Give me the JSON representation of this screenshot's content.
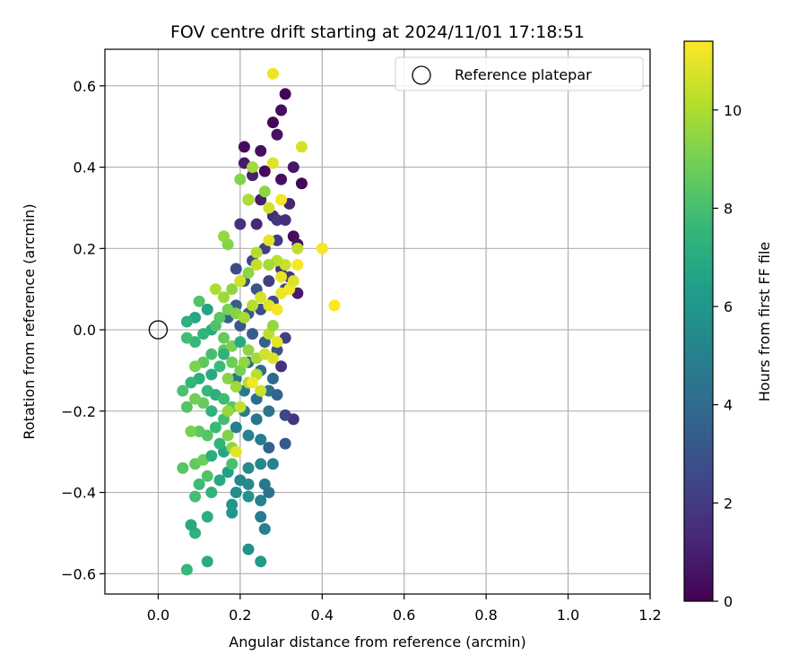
{
  "chart_data": {
    "type": "scatter",
    "title": "FOV centre drift starting at 2024/11/01 17:18:51",
    "xlabel": "Angular distance from reference (arcmin)",
    "ylabel": "Rotation from reference (arcmin)",
    "xlim": [
      -0.13,
      1.2
    ],
    "ylim": [
      -0.65,
      0.69
    ],
    "xticks": [
      0.0,
      0.2,
      0.4,
      0.6,
      0.8,
      1.0,
      1.2
    ],
    "xtick_labels": [
      "0.0",
      "0.2",
      "0.4",
      "0.6",
      "0.8",
      "1.0",
      "1.2"
    ],
    "yticks": [
      -0.6,
      -0.4,
      -0.2,
      0.0,
      0.2,
      0.4,
      0.6
    ],
    "ytick_labels": [
      "−0.6",
      "−0.4",
      "−0.2",
      "0.0",
      "0.2",
      "0.4",
      "0.6"
    ],
    "grid": true,
    "legend": {
      "placement": "top-right",
      "entries": [
        "Reference platepar"
      ]
    },
    "reference_point": {
      "x": 0.0,
      "y": 0.0,
      "marker": "hollow-circle"
    },
    "colorbar": {
      "label": "Hours from first FF file",
      "min": 0,
      "max": 11.4,
      "ticks": [
        0,
        2,
        4,
        6,
        8,
        10
      ],
      "tick_labels": [
        "0",
        "2",
        "4",
        "6",
        "8",
        "10"
      ],
      "colormap": "viridis"
    },
    "colormap_stops": [
      "#440154",
      "#482878",
      "#3e4989",
      "#31688e",
      "#26828e",
      "#1f9e89",
      "#35b779",
      "#6ece58",
      "#b5de2b",
      "#fde725"
    ],
    "points": [
      [
        0.21,
        0.45,
        0.3
      ],
      [
        0.25,
        0.44,
        0.5
      ],
      [
        0.28,
        0.51,
        0.2
      ],
      [
        0.31,
        0.58,
        0.1
      ],
      [
        0.3,
        0.54,
        0.4
      ],
      [
        0.29,
        0.48,
        0.6
      ],
      [
        0.21,
        0.41,
        0.8
      ],
      [
        0.23,
        0.38,
        1.0
      ],
      [
        0.26,
        0.39,
        0.3
      ],
      [
        0.3,
        0.37,
        0.5
      ],
      [
        0.33,
        0.4,
        0.7
      ],
      [
        0.35,
        0.36,
        0.2
      ],
      [
        0.32,
        0.31,
        1.2
      ],
      [
        0.28,
        0.28,
        1.4
      ],
      [
        0.25,
        0.32,
        0.9
      ],
      [
        0.22,
        0.32,
        1.1
      ],
      [
        0.2,
        0.26,
        1.6
      ],
      [
        0.24,
        0.26,
        1.3
      ],
      [
        0.29,
        0.27,
        1.8
      ],
      [
        0.31,
        0.27,
        1.5
      ],
      [
        0.33,
        0.23,
        0.4
      ],
      [
        0.34,
        0.21,
        0.6
      ],
      [
        0.29,
        0.22,
        2.0
      ],
      [
        0.26,
        0.2,
        2.2
      ],
      [
        0.23,
        0.17,
        2.4
      ],
      [
        0.19,
        0.15,
        2.6
      ],
      [
        0.21,
        0.12,
        2.8
      ],
      [
        0.24,
        0.1,
        3.0
      ],
      [
        0.27,
        0.12,
        2.1
      ],
      [
        0.3,
        0.15,
        1.7
      ],
      [
        0.32,
        0.13,
        1.9
      ],
      [
        0.34,
        0.09,
        0.8
      ],
      [
        0.31,
        0.1,
        2.3
      ],
      [
        0.28,
        0.07,
        2.5
      ],
      [
        0.25,
        0.05,
        2.7
      ],
      [
        0.22,
        0.04,
        3.2
      ],
      [
        0.19,
        0.06,
        3.4
      ],
      [
        0.17,
        0.03,
        3.6
      ],
      [
        0.2,
        0.01,
        3.1
      ],
      [
        0.23,
        -0.01,
        3.3
      ],
      [
        0.26,
        -0.03,
        3.5
      ],
      [
        0.29,
        -0.05,
        2.9
      ],
      [
        0.31,
        -0.02,
        2.2
      ],
      [
        0.3,
        -0.09,
        1.6
      ],
      [
        0.28,
        -0.12,
        3.8
      ],
      [
        0.25,
        -0.1,
        4.0
      ],
      [
        0.22,
        -0.08,
        4.2
      ],
      [
        0.19,
        -0.12,
        4.4
      ],
      [
        0.21,
        -0.15,
        4.6
      ],
      [
        0.24,
        -0.17,
        3.9
      ],
      [
        0.27,
        -0.15,
        4.1
      ],
      [
        0.29,
        -0.16,
        3.7
      ],
      [
        0.33,
        -0.22,
        1.8
      ],
      [
        0.31,
        -0.21,
        2.4
      ],
      [
        0.27,
        -0.2,
        4.3
      ],
      [
        0.24,
        -0.22,
        4.5
      ],
      [
        0.21,
        -0.2,
        4.7
      ],
      [
        0.19,
        -0.24,
        4.9
      ],
      [
        0.22,
        -0.26,
        5.1
      ],
      [
        0.25,
        -0.27,
        4.8
      ],
      [
        0.27,
        -0.29,
        3.6
      ],
      [
        0.31,
        -0.28,
        3.2
      ],
      [
        0.25,
        -0.33,
        5.3
      ],
      [
        0.28,
        -0.33,
        5.0
      ],
      [
        0.22,
        -0.34,
        5.5
      ],
      [
        0.2,
        -0.37,
        5.2
      ],
      [
        0.22,
        -0.38,
        5.4
      ],
      [
        0.26,
        -0.38,
        4.6
      ],
      [
        0.27,
        -0.4,
        4.4
      ],
      [
        0.19,
        -0.4,
        5.6
      ],
      [
        0.22,
        -0.41,
        5.8
      ],
      [
        0.25,
        -0.42,
        5.0
      ],
      [
        0.18,
        -0.43,
        5.9
      ],
      [
        0.18,
        -0.45,
        6.1
      ],
      [
        0.25,
        -0.46,
        4.7
      ],
      [
        0.26,
        -0.49,
        5.0
      ],
      [
        0.22,
        -0.54,
        5.7
      ],
      [
        0.25,
        -0.57,
        6.3
      ],
      [
        0.12,
        -0.57,
        7.0
      ],
      [
        0.07,
        -0.59,
        7.6
      ],
      [
        0.09,
        -0.5,
        7.3
      ],
      [
        0.08,
        -0.48,
        6.9
      ],
      [
        0.12,
        -0.46,
        7.2
      ],
      [
        0.13,
        -0.4,
        7.4
      ],
      [
        0.09,
        -0.41,
        8.0
      ],
      [
        0.1,
        -0.38,
        7.8
      ],
      [
        0.12,
        -0.36,
        8.2
      ],
      [
        0.15,
        -0.37,
        6.8
      ],
      [
        0.17,
        -0.35,
        6.5
      ],
      [
        0.06,
        -0.34,
        8.4
      ],
      [
        0.09,
        -0.33,
        8.6
      ],
      [
        0.11,
        -0.32,
        8.8
      ],
      [
        0.13,
        -0.31,
        7.1
      ],
      [
        0.16,
        -0.3,
        6.7
      ],
      [
        0.18,
        -0.33,
        8.1
      ],
      [
        0.15,
        -0.28,
        7.5
      ],
      [
        0.12,
        -0.26,
        8.3
      ],
      [
        0.14,
        -0.24,
        7.7
      ],
      [
        0.1,
        -0.25,
        8.5
      ],
      [
        0.08,
        -0.25,
        9.0
      ],
      [
        0.17,
        -0.26,
        9.2
      ],
      [
        0.18,
        -0.29,
        9.4
      ],
      [
        0.19,
        -0.3,
        11.0
      ],
      [
        0.16,
        -0.22,
        7.9
      ],
      [
        0.13,
        -0.2,
        7.3
      ],
      [
        0.11,
        -0.18,
        8.7
      ],
      [
        0.09,
        -0.17,
        8.9
      ],
      [
        0.06,
        -0.15,
        8.1
      ],
      [
        0.07,
        -0.19,
        8.3
      ],
      [
        0.12,
        -0.15,
        7.6
      ],
      [
        0.14,
        -0.16,
        7.2
      ],
      [
        0.16,
        -0.17,
        7.8
      ],
      [
        0.18,
        -0.19,
        8.4
      ],
      [
        0.2,
        -0.19,
        10.4
      ],
      [
        0.17,
        -0.2,
        9.6
      ],
      [
        0.13,
        -0.11,
        6.9
      ],
      [
        0.1,
        -0.12,
        7.1
      ],
      [
        0.08,
        -0.13,
        7.5
      ],
      [
        0.15,
        -0.09,
        7.7
      ],
      [
        0.11,
        -0.08,
        8.5
      ],
      [
        0.09,
        -0.09,
        9.1
      ],
      [
        0.13,
        -0.06,
        8.0
      ],
      [
        0.16,
        -0.05,
        8.6
      ],
      [
        0.18,
        -0.08,
        8.8
      ],
      [
        0.2,
        -0.1,
        9.0
      ],
      [
        0.17,
        -0.12,
        9.3
      ],
      [
        0.19,
        -0.14,
        9.7
      ],
      [
        0.22,
        -0.13,
        10.0
      ],
      [
        0.24,
        -0.11,
        10.2
      ],
      [
        0.24,
        -0.07,
        9.8
      ],
      [
        0.26,
        -0.06,
        10.6
      ],
      [
        0.28,
        -0.07,
        10.8
      ],
      [
        0.29,
        -0.03,
        11.0
      ],
      [
        0.27,
        -0.01,
        10.3
      ],
      [
        0.25,
        -0.15,
        10.5
      ],
      [
        0.23,
        -0.13,
        11.2
      ],
      [
        0.21,
        -0.08,
        9.5
      ],
      [
        0.18,
        -0.04,
        9.1
      ],
      [
        0.16,
        -0.02,
        8.7
      ],
      [
        0.13,
        0.0,
        7.0
      ],
      [
        0.11,
        -0.01,
        7.4
      ],
      [
        0.09,
        -0.03,
        7.6
      ],
      [
        0.07,
        -0.02,
        7.9
      ],
      [
        0.09,
        0.03,
        6.8
      ],
      [
        0.12,
        0.05,
        6.6
      ],
      [
        0.14,
        0.01,
        8.2
      ],
      [
        0.15,
        0.03,
        8.4
      ],
      [
        0.17,
        0.05,
        9.0
      ],
      [
        0.19,
        0.04,
        9.3
      ],
      [
        0.21,
        0.03,
        9.9
      ],
      [
        0.23,
        0.06,
        10.1
      ],
      [
        0.25,
        0.08,
        10.7
      ],
      [
        0.27,
        0.06,
        10.9
      ],
      [
        0.29,
        0.05,
        11.3
      ],
      [
        0.28,
        0.01,
        9.6
      ],
      [
        0.3,
        0.09,
        11.1
      ],
      [
        0.32,
        0.1,
        11.2
      ],
      [
        0.33,
        0.12,
        10.8
      ],
      [
        0.3,
        0.13,
        11.0
      ],
      [
        0.31,
        0.16,
        10.5
      ],
      [
        0.34,
        0.16,
        11.3
      ],
      [
        0.29,
        0.17,
        10.2
      ],
      [
        0.27,
        0.16,
        9.8
      ],
      [
        0.24,
        0.16,
        10.4
      ],
      [
        0.22,
        0.14,
        9.4
      ],
      [
        0.2,
        0.12,
        10.6
      ],
      [
        0.18,
        0.1,
        9.5
      ],
      [
        0.16,
        0.08,
        9.7
      ],
      [
        0.14,
        0.1,
        10.0
      ],
      [
        0.17,
        0.21,
        9.3
      ],
      [
        0.16,
        0.23,
        9.6
      ],
      [
        0.22,
        0.32,
        10.0
      ],
      [
        0.26,
        0.34,
        9.4
      ],
      [
        0.27,
        0.3,
        10.6
      ],
      [
        0.3,
        0.32,
        11.2
      ],
      [
        0.28,
        0.41,
        10.9
      ],
      [
        0.23,
        0.4,
        9.8
      ],
      [
        0.2,
        0.37,
        9.2
      ],
      [
        0.28,
        0.63,
        11.1
      ],
      [
        0.35,
        0.45,
        10.7
      ],
      [
        0.4,
        0.2,
        11.3
      ],
      [
        0.43,
        0.06,
        11.4
      ],
      [
        0.34,
        0.2,
        10.3
      ],
      [
        0.27,
        0.22,
        11.0
      ],
      [
        0.24,
        0.19,
        10.1
      ],
      [
        0.1,
        0.07,
        8.3
      ],
      [
        0.07,
        0.02,
        7.2
      ],
      [
        0.16,
        -0.06,
        7.3
      ],
      [
        0.2,
        -0.03,
        6.9
      ],
      [
        0.22,
        -0.05,
        9.4
      ]
    ]
  }
}
